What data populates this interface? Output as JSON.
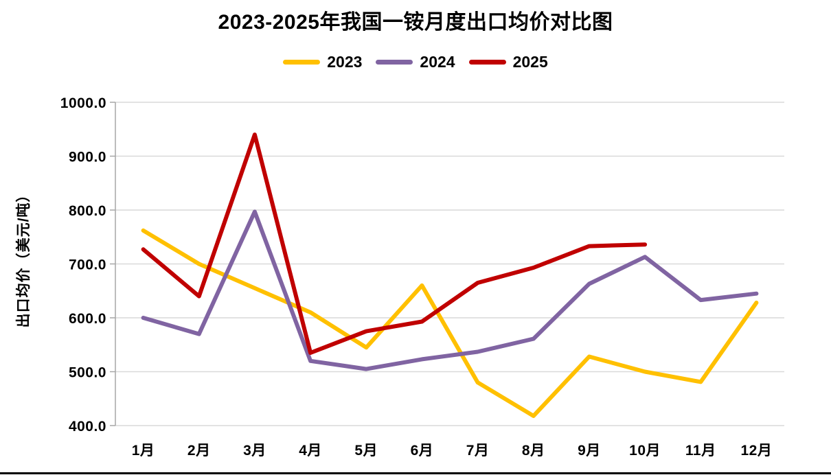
{
  "title": "2023-2025年我国一铵月度出口均价对比图",
  "colors": {
    "series_2023": "#FFC000",
    "series_2024": "#8064A2",
    "series_2025": "#C00000",
    "gridline": "#D9D9D9",
    "axis": "#A6A6A6",
    "text": "#000000",
    "page_bottom_border": "#000000"
  },
  "chart_data": {
    "type": "line",
    "title": "2023-2025年我国一铵月度出口均价对比图",
    "ylabel": "出口均价（美元/吨）",
    "xlabel": "",
    "categories": [
      "1月",
      "2月",
      "3月",
      "4月",
      "5月",
      "6月",
      "7月",
      "8月",
      "9月",
      "10月",
      "11月",
      "12月"
    ],
    "series": [
      {
        "name": "2023",
        "color": "#FFC000",
        "values": [
          762,
          700,
          655,
          610,
          545,
          660,
          480,
          418,
          528,
          500,
          481,
          628
        ]
      },
      {
        "name": "2024",
        "color": "#8064A2",
        "values": [
          600,
          570,
          797,
          520,
          505,
          523,
          537,
          561,
          663,
          713,
          633,
          645
        ]
      },
      {
        "name": "2025",
        "color": "#C00000",
        "values": [
          727,
          640,
          940,
          535,
          575,
          593,
          665,
          693,
          733,
          736,
          null,
          null
        ]
      }
    ],
    "ylim": [
      400,
      1000
    ],
    "ytick_step": 100,
    "ytick_labels": [
      "400.0",
      "500.0",
      "600.0",
      "700.0",
      "800.0",
      "900.0",
      "1000.0"
    ],
    "grid": "horizontal",
    "legend_position": "top",
    "legend_entries": [
      "2023",
      "2024",
      "2025"
    ]
  }
}
